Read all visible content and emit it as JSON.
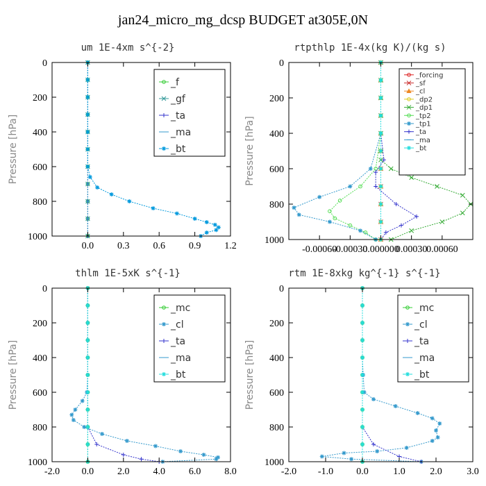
{
  "figure_title": "jan24_micro_mg_dcsp  BUDGET at305E,0N",
  "chart_data": [
    {
      "type": "line",
      "title": "um  1E-4xm s^{-2}",
      "ylabel": "Pressure [hPa]",
      "xlim": [
        -0.3,
        1.2
      ],
      "ylim": [
        1000,
        0
      ],
      "xticks": [
        "0.0",
        "0.3",
        "0.6",
        "0.9",
        "1.2"
      ],
      "xtick_values": [
        0,
        0.3,
        0.6,
        0.9,
        1.2
      ],
      "yticks": [
        "0",
        "200",
        "400",
        "600",
        "800",
        "1000"
      ],
      "ytick_values": [
        0,
        200,
        400,
        600,
        800,
        1000
      ],
      "legend_position": "top-right",
      "series": [
        {
          "name": "_f",
          "color": "#33cc33",
          "marker": "circle",
          "x": [
            0,
            0,
            0,
            0,
            0,
            0,
            0,
            0,
            0,
            0,
            0
          ],
          "y": [
            0,
            100,
            200,
            300,
            400,
            500,
            600,
            700,
            800,
            900,
            1000
          ]
        },
        {
          "name": "_gf",
          "color": "#339999",
          "marker": "x",
          "x": [
            0,
            0,
            0,
            0,
            0,
            0,
            0,
            0,
            0,
            0,
            0
          ],
          "y": [
            0,
            100,
            200,
            300,
            400,
            500,
            600,
            700,
            800,
            900,
            1000
          ]
        },
        {
          "name": "_ta",
          "color": "#3333cc",
          "marker": "plus",
          "x": [
            0,
            0,
            0,
            0,
            0,
            0,
            0,
            0,
            0,
            0,
            0
          ],
          "y": [
            0,
            100,
            200,
            300,
            400,
            500,
            600,
            700,
            800,
            900,
            1000
          ]
        },
        {
          "name": "_ma",
          "color": "#3399cc",
          "marker": "dash",
          "x": [
            0,
            0,
            0,
            0,
            0,
            0,
            0,
            0,
            0,
            0,
            0
          ],
          "y": [
            0,
            100,
            200,
            300,
            400,
            500,
            600,
            700,
            800,
            900,
            1000
          ]
        },
        {
          "name": "_bt",
          "color": "#0099dd",
          "marker": "star",
          "x": [
            0,
            0,
            0,
            0,
            0,
            0,
            0,
            0.02,
            0.08,
            0.2,
            0.35,
            0.55,
            0.75,
            0.9,
            1.0,
            1.07,
            1.1,
            1.08,
            1.0,
            0.95
          ],
          "y": [
            0,
            100,
            200,
            300,
            400,
            500,
            600,
            660,
            720,
            760,
            800,
            840,
            870,
            900,
            920,
            935,
            950,
            965,
            980,
            1000
          ]
        }
      ]
    },
    {
      "type": "line",
      "title": "rtpthlp  1E-4x(kg K)/(kg s)",
      "ylabel": "Pressure [hPa]",
      "xlim": [
        -0.0009,
        0.0009
      ],
      "ylim": [
        1000,
        0
      ],
      "xticks": [
        "-0.00060",
        "-0.00030",
        "0.000000",
        "0.00030",
        "0.00060"
      ],
      "xtick_values": [
        -0.0006,
        -0.0003,
        0,
        0.0003,
        0.0006
      ],
      "yticks": [
        "0",
        "200",
        "400",
        "600",
        "800",
        "1000"
      ],
      "ytick_values": [
        0,
        200,
        400,
        600,
        800,
        1000
      ],
      "legend_position": "top-right",
      "series": [
        {
          "name": "_forcing",
          "color": "#dd2222",
          "marker": "circle",
          "x": [
            0,
            0,
            0,
            0,
            0,
            0,
            0,
            0,
            0,
            0,
            0
          ],
          "y": [
            0,
            100,
            200,
            300,
            400,
            500,
            600,
            700,
            800,
            900,
            1000
          ]
        },
        {
          "name": "_sf",
          "color": "#cc3333",
          "marker": "x",
          "x": [
            0,
            0,
            0,
            0,
            0,
            0,
            0,
            0,
            0,
            0,
            0
          ],
          "y": [
            0,
            100,
            200,
            300,
            400,
            500,
            600,
            700,
            800,
            900,
            1000
          ]
        },
        {
          "name": "_cl",
          "color": "#ee8822",
          "marker": "triangle",
          "x": [
            0,
            0,
            0,
            0,
            0,
            0,
            0,
            0,
            0,
            0,
            0
          ],
          "y": [
            0,
            100,
            200,
            300,
            400,
            500,
            600,
            700,
            800,
            900,
            1000
          ]
        },
        {
          "name": "_dp2",
          "color": "#ddcc22",
          "marker": "circle",
          "x": [
            0,
            0,
            0,
            0,
            0,
            0,
            0,
            0,
            0,
            0,
            0
          ],
          "y": [
            0,
            100,
            200,
            300,
            400,
            500,
            600,
            700,
            800,
            900,
            1000
          ]
        },
        {
          "name": "_dp1",
          "color": "#33aa33",
          "marker": "x",
          "x": [
            0,
            0,
            0,
            0,
            0,
            0,
            0,
            0.0001,
            0.0003,
            0.00055,
            0.0008,
            0.00088,
            0.0008,
            0.0006,
            0.0003,
            0.0001
          ],
          "y": [
            0,
            100,
            200,
            300,
            400,
            500,
            550,
            600,
            650,
            700,
            750,
            800,
            850,
            900,
            950,
            1000
          ]
        },
        {
          "name": "_tp2",
          "color": "#55dd55",
          "marker": "circle",
          "x": [
            0,
            0,
            0,
            0,
            0,
            -5e-05,
            -0.0002,
            -0.0004,
            -0.0005,
            -0.00045,
            -0.0003,
            -0.00015,
            -5e-05
          ],
          "y": [
            0,
            100,
            200,
            300,
            400,
            600,
            700,
            780,
            840,
            880,
            920,
            960,
            1000
          ]
        },
        {
          "name": "_tp1",
          "color": "#3399cc",
          "marker": "star",
          "x": [
            0,
            0,
            0,
            0,
            0,
            -0.0001,
            -0.0003,
            -0.0006,
            -0.00085,
            -0.0008,
            -0.0005,
            -0.0002,
            -5e-05
          ],
          "y": [
            0,
            100,
            200,
            300,
            400,
            600,
            700,
            760,
            820,
            860,
            900,
            950,
            1000
          ]
        },
        {
          "name": "_ta",
          "color": "#3333cc",
          "marker": "plus",
          "x": [
            0,
            0,
            0,
            0,
            0,
            3e-05,
            -5e-05,
            -5e-05,
            0.00015,
            0.00035,
            0.0002,
            5e-05,
            0
          ],
          "y": [
            0,
            100,
            200,
            300,
            400,
            550,
            620,
            700,
            800,
            870,
            920,
            960,
            1000
          ]
        },
        {
          "name": "_ma",
          "color": "#3399cc",
          "marker": "dash",
          "x": [
            0,
            0,
            0,
            0,
            0,
            0,
            0,
            0,
            0,
            0,
            0
          ],
          "y": [
            0,
            100,
            200,
            300,
            400,
            500,
            600,
            700,
            800,
            900,
            1000
          ]
        },
        {
          "name": "_bt",
          "color": "#22dddd",
          "marker": "star",
          "x": [
            0,
            0,
            0,
            0,
            0,
            0,
            0,
            0,
            0,
            0,
            0
          ],
          "y": [
            0,
            100,
            200,
            300,
            400,
            500,
            600,
            700,
            800,
            900,
            1000
          ]
        }
      ]
    },
    {
      "type": "line",
      "title": "thlm  1E-5xK s^{-1}",
      "ylabel": "Pressure [hPa]",
      "xlim": [
        -2.0,
        8.0
      ],
      "ylim": [
        1000,
        0
      ],
      "xticks": [
        "-2.0",
        "0.0",
        "2.0",
        "4.0",
        "6.0",
        "8.0"
      ],
      "xtick_values": [
        -2,
        0,
        2,
        4,
        6,
        8
      ],
      "yticks": [
        "0",
        "200",
        "400",
        "600",
        "800",
        "1000"
      ],
      "ytick_values": [
        0,
        200,
        400,
        600,
        800,
        1000
      ],
      "legend_position": "top-right",
      "series": [
        {
          "name": "_mc",
          "color": "#33cc33",
          "marker": "circle",
          "x": [
            0,
            0,
            0,
            0,
            0,
            0,
            0,
            0,
            0,
            0,
            0
          ],
          "y": [
            0,
            100,
            200,
            300,
            400,
            500,
            600,
            700,
            800,
            900,
            1000
          ]
        },
        {
          "name": "_cl",
          "color": "#3399cc",
          "marker": "star",
          "x": [
            0,
            0,
            0,
            0,
            0,
            0,
            -0.05,
            -0.3,
            -0.7,
            -0.9,
            -0.8,
            -0.2,
            0.8,
            2.2,
            3.8,
            5.2,
            6.5,
            7.3,
            7.2,
            4.2
          ],
          "y": [
            0,
            100,
            200,
            300,
            400,
            500,
            600,
            650,
            700,
            730,
            760,
            800,
            840,
            880,
            910,
            940,
            960,
            975,
            985,
            1000
          ]
        },
        {
          "name": "_ta",
          "color": "#3333cc",
          "marker": "plus",
          "x": [
            0,
            0,
            0,
            0,
            0,
            0,
            0,
            0,
            0,
            0.5,
            2,
            3,
            4
          ],
          "y": [
            0,
            100,
            200,
            300,
            400,
            500,
            600,
            700,
            800,
            900,
            960,
            985,
            1000
          ]
        },
        {
          "name": "_ma",
          "color": "#3399cc",
          "marker": "dash",
          "x": [
            0,
            0,
            0,
            0,
            0,
            0,
            0,
            0,
            0,
            0,
            0
          ],
          "y": [
            0,
            100,
            200,
            300,
            400,
            500,
            600,
            700,
            800,
            900,
            1000
          ]
        },
        {
          "name": "_bt",
          "color": "#22dddd",
          "marker": "star",
          "x": [
            0,
            0,
            0,
            0,
            0,
            0,
            0,
            0,
            0,
            0,
            0
          ],
          "y": [
            0,
            100,
            200,
            300,
            400,
            500,
            600,
            700,
            800,
            900,
            1000
          ]
        }
      ]
    },
    {
      "type": "line",
      "title": "rtm  1E-8xkg kg^{-1} s^{-1}",
      "ylabel": "Pressure [hPa]",
      "xlim": [
        -2.0,
        3.0
      ],
      "ylim": [
        1000,
        0
      ],
      "xticks": [
        "-2.0",
        "-1.0",
        "0.0",
        "1.0",
        "2.0",
        "3.0"
      ],
      "xtick_values": [
        -2,
        -1,
        0,
        1,
        2,
        3
      ],
      "yticks": [
        "0",
        "200",
        "400",
        "600",
        "800",
        "1000"
      ],
      "ytick_values": [
        0,
        200,
        400,
        600,
        800,
        1000
      ],
      "legend_position": "top-right",
      "series": [
        {
          "name": "_mc",
          "color": "#33cc33",
          "marker": "circle",
          "x": [
            0,
            0,
            0,
            0,
            0,
            0,
            0,
            0,
            0,
            0,
            0
          ],
          "y": [
            0,
            100,
            200,
            300,
            400,
            500,
            600,
            700,
            800,
            900,
            1000
          ]
        },
        {
          "name": "_cl",
          "color": "#3399cc",
          "marker": "star",
          "x": [
            0,
            0,
            0,
            0,
            0,
            0.02,
            0.05,
            0.3,
            0.9,
            1.5,
            1.9,
            2.1,
            2.0,
            2.05,
            1.9,
            1.2,
            0.4,
            -0.5,
            -1.1,
            -0.3,
            1.6
          ],
          "y": [
            0,
            100,
            200,
            300,
            400,
            500,
            600,
            640,
            680,
            720,
            750,
            780,
            820,
            860,
            880,
            920,
            940,
            950,
            970,
            985,
            1000
          ]
        },
        {
          "name": "_ta",
          "color": "#3333cc",
          "marker": "plus",
          "x": [
            0,
            0,
            0,
            0,
            0,
            0,
            0,
            0,
            0,
            0.3,
            1.0,
            1.6
          ],
          "y": [
            0,
            100,
            200,
            300,
            400,
            500,
            600,
            700,
            800,
            900,
            970,
            1000
          ]
        },
        {
          "name": "_ma",
          "color": "#3399cc",
          "marker": "dash",
          "x": [
            0,
            0,
            0,
            0,
            0,
            0,
            0,
            0,
            0,
            0,
            0
          ],
          "y": [
            0,
            100,
            200,
            300,
            400,
            500,
            600,
            700,
            800,
            900,
            1000
          ]
        },
        {
          "name": "_bt",
          "color": "#22dddd",
          "marker": "star",
          "x": [
            0,
            0,
            0,
            0,
            0,
            0,
            0,
            0,
            0,
            0,
            0
          ],
          "y": [
            0,
            100,
            200,
            300,
            400,
            500,
            600,
            700,
            800,
            900,
            1000
          ]
        }
      ]
    }
  ]
}
